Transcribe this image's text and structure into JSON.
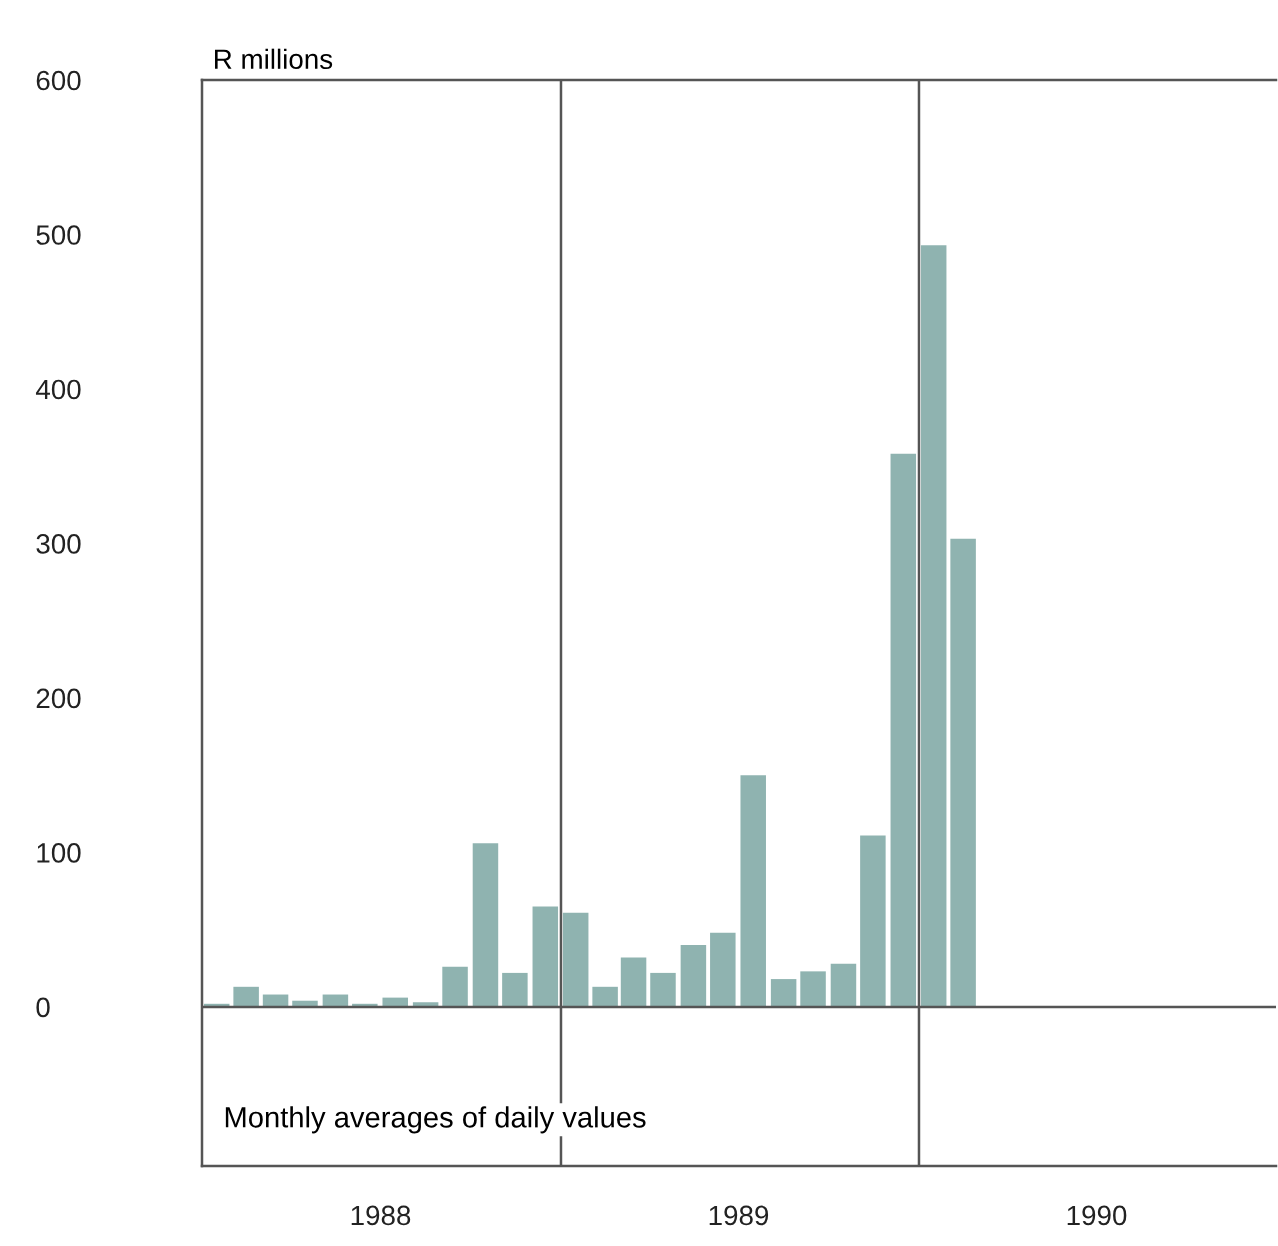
{
  "chart_data": {
    "type": "bar",
    "ylabel": "R millions",
    "x": [
      "1988-01-16",
      "1988-02-15",
      "1988-03-16",
      "1988-04-15",
      "1988-05-16",
      "1988-06-15",
      "1988-07-16",
      "1988-08-16",
      "1988-09-15",
      "1988-10-16",
      "1988-11-15",
      "1988-12-16",
      "1989-01-16",
      "1989-02-15",
      "1989-03-16",
      "1989-04-15",
      "1989-05-16",
      "1989-06-15",
      "1989-07-16",
      "1989-08-16",
      "1989-09-15",
      "1989-10-16",
      "1989-11-15",
      "1989-12-16",
      "1990-01-16",
      "1990-02-15"
    ],
    "values": [
      2,
      13,
      8,
      4,
      8,
      2,
      6,
      3,
      26,
      106,
      22,
      65,
      61,
      13,
      32,
      22,
      40,
      48,
      150,
      18,
      23,
      28,
      111,
      358,
      493,
      303
    ],
    "color": "#8fb3b0",
    "xlim": [
      "1988-01-01",
      "1990-12-31"
    ],
    "xticks": [
      {
        "value": "1988-07-01",
        "label": "1988"
      },
      {
        "value": "1989-07-01",
        "label": "1989"
      },
      {
        "value": "1990-07-01",
        "label": "1990"
      }
    ],
    "ylim": [
      -103,
      600
    ],
    "yticks": [
      0,
      100,
      200,
      300,
      400,
      500,
      600
    ],
    "ref_lines": [
      {
        "axis": "x",
        "value": "1989-01-01",
        "label": null
      },
      {
        "axis": "x",
        "value": "1990-01-01",
        "label": null
      },
      {
        "axis": "y",
        "value": 0,
        "label": null
      }
    ],
    "annotations": [
      "Monthly averages of daily values"
    ],
    "grid": false
  }
}
